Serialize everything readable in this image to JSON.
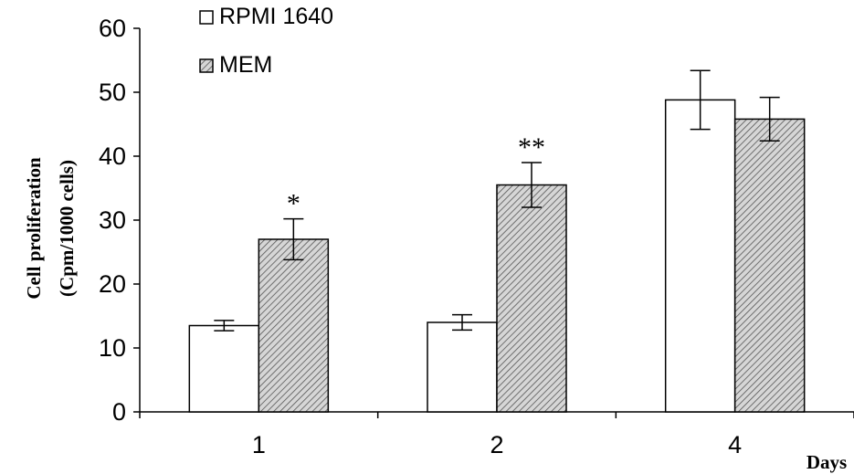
{
  "chart_data": {
    "type": "bar",
    "categories": [
      "1",
      "2",
      "4"
    ],
    "series": [
      {
        "name": "RPMI 1640",
        "values": [
          13.5,
          14.0,
          48.8
        ],
        "errors": [
          0.8,
          1.2,
          4.6
        ],
        "color": "#ffffff"
      },
      {
        "name": "MEM",
        "values": [
          27.0,
          35.5,
          45.8
        ],
        "errors": [
          3.2,
          3.5,
          3.4
        ],
        "color": "#c8c8c8"
      }
    ],
    "annotations": [
      "*",
      "**",
      ""
    ],
    "xlabel": "Days",
    "ylabel_lines": [
      "Cell proliferation",
      "(Cpm/1000 cells)"
    ],
    "ylim": [
      0,
      60
    ],
    "yticks": [
      "0",
      "10",
      "20",
      "30",
      "40",
      "50",
      "60"
    ],
    "grid": false,
    "legend_position": "top-left"
  }
}
